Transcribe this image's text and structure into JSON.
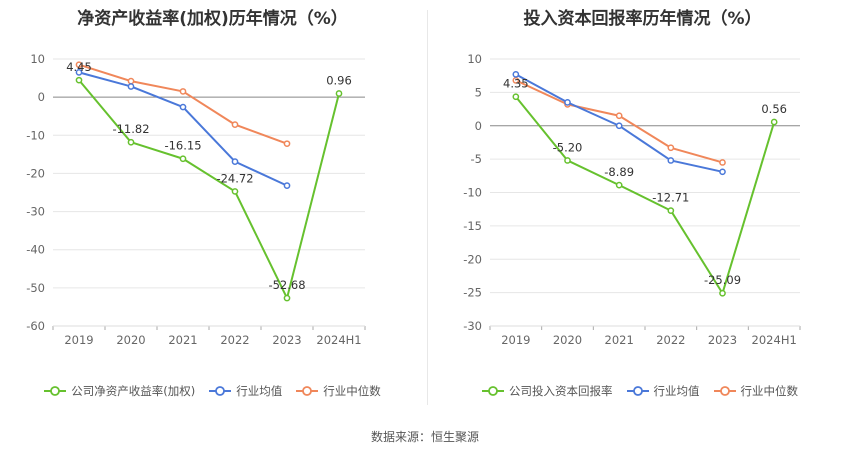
{
  "source": "数据来源：恒生聚源",
  "colors": {
    "company": "#66c12e",
    "avg": "#4a78d9",
    "median": "#f0875a"
  },
  "chart_data": [
    {
      "type": "line",
      "title": "净资产收益率(加权)历年情况（%）",
      "categories": [
        "2019",
        "2020",
        "2021",
        "2022",
        "2023",
        "2024H1"
      ],
      "ylim": [
        -60,
        10
      ],
      "yticks": [
        10,
        0,
        -10,
        -20,
        -30,
        -40,
        -50,
        -60
      ],
      "grid": true,
      "legend_position": "bottom",
      "series": [
        {
          "name": "公司净资产收益率(加权)",
          "key": "company",
          "values": [
            4.45,
            -11.82,
            -16.15,
            -24.72,
            -52.68,
            0.96
          ],
          "labels": [
            "4.45",
            "-11.82",
            "-16.15",
            "-24.72",
            "-52.68",
            "0.96"
          ]
        },
        {
          "name": "行业均值",
          "key": "avg",
          "values": [
            6.5,
            2.8,
            -2.6,
            -16.9,
            -23.2,
            null
          ]
        },
        {
          "name": "行业中位数",
          "key": "median",
          "values": [
            8.5,
            4.2,
            1.5,
            -7.2,
            -12.2,
            null
          ]
        }
      ]
    },
    {
      "type": "line",
      "title": "投入资本回报率历年情况（%）",
      "categories": [
        "2019",
        "2020",
        "2021",
        "2022",
        "2023",
        "2024H1"
      ],
      "ylim": [
        -30,
        10
      ],
      "yticks": [
        10,
        5,
        0,
        -5,
        -10,
        -15,
        -20,
        -25,
        -30
      ],
      "grid": true,
      "legend_position": "bottom",
      "series": [
        {
          "name": "公司投入资本回报率",
          "key": "company",
          "values": [
            4.35,
            -5.2,
            -8.89,
            -12.71,
            -25.09,
            0.56
          ],
          "labels": [
            "4.35",
            "-5.20",
            "-8.89",
            "-12.71",
            "-25.09",
            "0.56"
          ]
        },
        {
          "name": "行业均值",
          "key": "avg",
          "values": [
            7.7,
            3.5,
            0.0,
            -5.2,
            -6.9,
            null
          ]
        },
        {
          "name": "行业中位数",
          "key": "median",
          "values": [
            6.8,
            3.2,
            1.5,
            -3.3,
            -5.5,
            null
          ]
        }
      ]
    }
  ]
}
